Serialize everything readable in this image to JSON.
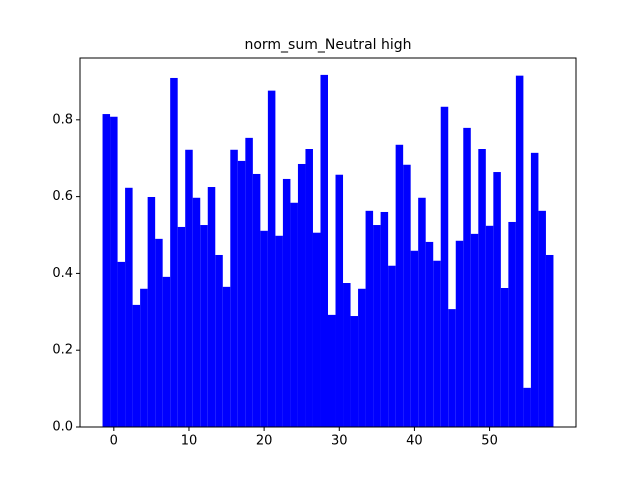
{
  "chart_data": {
    "type": "bar",
    "title": "norm_sum_Neutral high",
    "color": "#0000ff",
    "x": [
      -1,
      0,
      1,
      2,
      3,
      4,
      5,
      6,
      7,
      8,
      9,
      10,
      11,
      12,
      13,
      14,
      15,
      16,
      17,
      18,
      19,
      20,
      21,
      22,
      23,
      24,
      25,
      26,
      27,
      28,
      29,
      30,
      31,
      32,
      33,
      34,
      35,
      36,
      37,
      38,
      39,
      40,
      41,
      42,
      43,
      44,
      45,
      46,
      47,
      48,
      49,
      50,
      51,
      52,
      53,
      54,
      55,
      56,
      57,
      58
    ],
    "values": [
      0.815,
      0.808,
      0.43,
      0.623,
      0.318,
      0.36,
      0.599,
      0.49,
      0.391,
      0.909,
      0.521,
      0.722,
      0.597,
      0.526,
      0.625,
      0.448,
      0.365,
      0.722,
      0.693,
      0.753,
      0.659,
      0.511,
      0.876,
      0.498,
      0.646,
      0.584,
      0.685,
      0.724,
      0.506,
      0.917,
      0.292,
      0.657,
      0.375,
      0.289,
      0.36,
      0.563,
      0.526,
      0.56,
      0.42,
      0.735,
      0.683,
      0.459,
      0.597,
      0.482,
      0.433,
      0.834,
      0.307,
      0.485,
      0.779,
      0.503,
      0.724,
      0.524,
      0.664,
      0.362,
      0.534,
      0.915,
      0.102,
      0.714,
      0.563,
      0.448
    ],
    "xlim": [
      -4.5,
      61.5
    ],
    "xticks": [
      0,
      10,
      20,
      30,
      40,
      50
    ],
    "ylim": [
      0,
      0.961
    ],
    "yticks": [
      {
        "value": 0,
        "label": "0.0"
      },
      0.2,
      0.4,
      0.6,
      0.8
    ]
  }
}
